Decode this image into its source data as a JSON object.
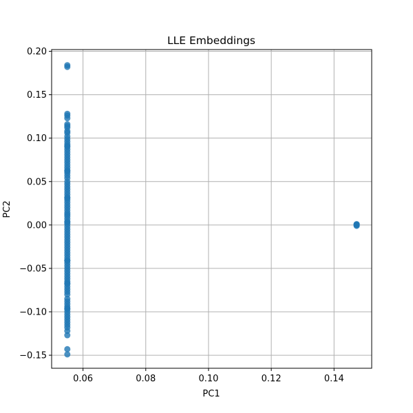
{
  "chart_data": {
    "type": "scatter",
    "title": "LLE Embeddings",
    "xlabel": "PC1",
    "ylabel": "PC2",
    "xlim": [
      0.05,
      0.152
    ],
    "ylim": [
      -0.165,
      0.202
    ],
    "xticks": [
      0.06,
      0.08,
      0.1,
      0.12,
      0.14
    ],
    "xtick_labels": [
      "0.06",
      "0.08",
      "0.10",
      "0.12",
      "0.14"
    ],
    "yticks": [
      -0.15,
      -0.1,
      -0.05,
      0.0,
      0.05,
      0.1,
      0.15,
      0.2
    ],
    "ytick_labels": [
      "−0.15",
      "−0.10",
      "−0.05",
      "0.00",
      "0.05",
      "0.10",
      "0.15",
      "0.20"
    ],
    "grid": true,
    "colors": {
      "points": "#1f77b4",
      "grid": "#b0b0b0",
      "axes": "#000000"
    },
    "series": [
      {
        "x": [
          0.055,
          0.055,
          0.055,
          0.055,
          0.055,
          0.055,
          0.055,
          0.055,
          0.055,
          0.055,
          0.055,
          0.055,
          0.055,
          0.055,
          0.055,
          0.055,
          0.055,
          0.055,
          0.055,
          0.055,
          0.055,
          0.055,
          0.055,
          0.055,
          0.055,
          0.055,
          0.055,
          0.055,
          0.055,
          0.055,
          0.055,
          0.055,
          0.055,
          0.055,
          0.055,
          0.055,
          0.055,
          0.055,
          0.055,
          0.055,
          0.055,
          0.055,
          0.055,
          0.055,
          0.055,
          0.055,
          0.055,
          0.055,
          0.055,
          0.055,
          0.055,
          0.055,
          0.055,
          0.055,
          0.055,
          0.055,
          0.055,
          0.055,
          0.055,
          0.055,
          0.055,
          0.055,
          0.055,
          0.055,
          0.055,
          0.055,
          0.055,
          0.055,
          0.055,
          0.055,
          0.055,
          0.055,
          0.055,
          0.055,
          0.055,
          0.055,
          0.055,
          0.055,
          0.055,
          0.055,
          0.055,
          0.055,
          0.055,
          0.055,
          0.055,
          0.055,
          0.055,
          0.055,
          0.055,
          0.055,
          0.055,
          0.055,
          0.055,
          0.055,
          0.055,
          0.1472,
          0.1472,
          0.1472,
          0.1472,
          0.1472
        ],
        "y": [
          0.184,
          0.182,
          0.128,
          0.126,
          0.123,
          0.116,
          0.114,
          0.112,
          0.108,
          0.106,
          0.102,
          0.099,
          0.096,
          0.093,
          0.09,
          0.087,
          0.084,
          0.081,
          0.078,
          0.075,
          0.072,
          0.069,
          0.066,
          0.063,
          0.06,
          0.057,
          0.054,
          0.05,
          0.047,
          0.044,
          0.041,
          0.038,
          0.035,
          0.032,
          0.029,
          0.026,
          0.023,
          0.02,
          0.017,
          0.014,
          0.01,
          0.007,
          0.004,
          0.001,
          -0.002,
          -0.005,
          -0.008,
          -0.011,
          -0.014,
          -0.017,
          -0.02,
          -0.023,
          -0.026,
          -0.029,
          -0.032,
          -0.035,
          -0.038,
          -0.041,
          -0.044,
          -0.047,
          -0.05,
          -0.053,
          -0.056,
          -0.059,
          -0.062,
          -0.065,
          -0.068,
          -0.071,
          -0.074,
          -0.077,
          -0.08,
          -0.085,
          -0.088,
          -0.091,
          -0.094,
          -0.097,
          -0.1,
          -0.103,
          -0.106,
          -0.109,
          -0.112,
          -0.115,
          -0.118,
          -0.122,
          -0.127,
          -0.143,
          -0.149,
          0.031,
          0.012,
          -0.041,
          0.062,
          -0.067,
          0.091,
          -0.096,
          0.003,
          0.001,
          0.0,
          0.0,
          -0.001,
          0.0005
        ]
      }
    ]
  }
}
